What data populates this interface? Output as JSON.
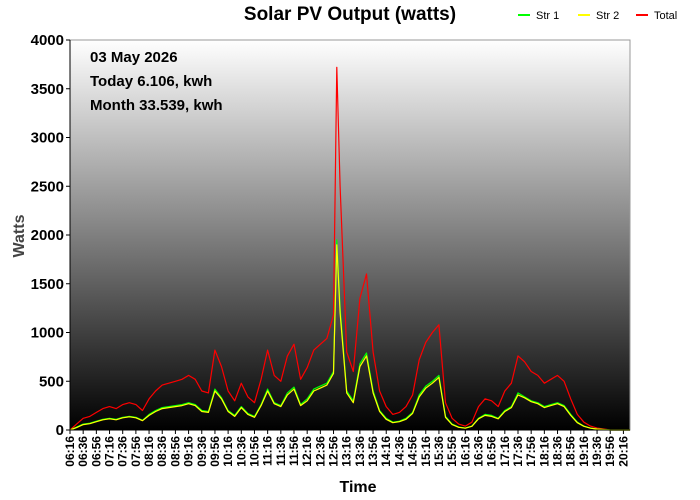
{
  "chart_data": {
    "type": "line",
    "title": "Solar PV Output (watts)",
    "xlabel": "Time",
    "ylabel": "Watts",
    "ylim": [
      0,
      4000
    ],
    "y_ticks": [
      0,
      500,
      1000,
      1500,
      2000,
      2500,
      3000,
      3500,
      4000
    ],
    "x_ticks": [
      "06:16",
      "06:36",
      "06:56",
      "07:16",
      "07:36",
      "07:56",
      "08:16",
      "08:36",
      "08:56",
      "09:16",
      "09:36",
      "09:56",
      "10:16",
      "10:36",
      "10:56",
      "11:16",
      "11:36",
      "11:56",
      "12:16",
      "12:36",
      "12:56",
      "13:16",
      "13:36",
      "13:56",
      "14:16",
      "14:36",
      "14:56",
      "15:16",
      "15:36",
      "15:56",
      "16:16",
      "16:36",
      "16:56",
      "17:16",
      "17:36",
      "17:56",
      "18:16",
      "18:36",
      "18:56",
      "19:16",
      "19:36",
      "19:56",
      "20:16"
    ],
    "legend_position": "top-right",
    "grid": false,
    "annotations": [
      "03 May 2026",
      "Today 6.106, kwh",
      "Month 33.539, kwh"
    ],
    "series": [
      {
        "name": "Str 1",
        "color": "#00ff00",
        "x": [
          "06:16",
          "06:26",
          "06:36",
          "06:46",
          "06:56",
          "07:06",
          "07:16",
          "07:26",
          "07:36",
          "07:46",
          "07:56",
          "08:06",
          "08:16",
          "08:26",
          "08:36",
          "08:46",
          "08:56",
          "09:06",
          "09:16",
          "09:26",
          "09:36",
          "09:46",
          "09:56",
          "10:06",
          "10:16",
          "10:26",
          "10:36",
          "10:46",
          "10:56",
          "11:06",
          "11:16",
          "11:26",
          "11:36",
          "11:46",
          "11:56",
          "12:06",
          "12:16",
          "12:26",
          "12:36",
          "12:46",
          "12:56",
          "13:01",
          "13:06",
          "13:16",
          "13:26",
          "13:36",
          "13:46",
          "13:56",
          "14:06",
          "14:16",
          "14:26",
          "14:36",
          "14:46",
          "14:56",
          "15:06",
          "15:16",
          "15:26",
          "15:36",
          "15:46",
          "15:56",
          "16:06",
          "16:16",
          "16:26",
          "16:36",
          "16:46",
          "16:56",
          "17:06",
          "17:16",
          "17:26",
          "17:36",
          "17:46",
          "17:56",
          "18:06",
          "18:16",
          "18:26",
          "18:36",
          "18:46",
          "18:56",
          "19:06",
          "19:16",
          "19:26",
          "19:36",
          "19:46",
          "19:56",
          "20:06",
          "20:16",
          "20:26"
        ],
        "values": [
          0,
          30,
          60,
          70,
          90,
          110,
          120,
          110,
          130,
          140,
          130,
          100,
          160,
          200,
          230,
          240,
          250,
          260,
          280,
          260,
          200,
          190,
          420,
          330,
          200,
          150,
          240,
          170,
          140,
          260,
          420,
          280,
          250,
          380,
          440,
          260,
          320,
          420,
          450,
          480,
          600,
          1950,
          1250,
          400,
          300,
          680,
          790,
          400,
          200,
          120,
          80,
          90,
          120,
          180,
          360,
          450,
          500,
          560,
          140,
          60,
          30,
          20,
          40,
          120,
          160,
          150,
          120,
          200,
          240,
          380,
          340,
          300,
          280,
          240,
          260,
          280,
          250,
          160,
          80,
          40,
          20,
          10,
          5,
          0,
          0,
          0,
          0
        ]
      },
      {
        "name": "Str 2",
        "color": "#ffff00",
        "x": [
          "06:16",
          "06:26",
          "06:36",
          "06:46",
          "06:56",
          "07:06",
          "07:16",
          "07:26",
          "07:36",
          "07:46",
          "07:56",
          "08:06",
          "08:16",
          "08:26",
          "08:36",
          "08:46",
          "08:56",
          "09:06",
          "09:16",
          "09:26",
          "09:36",
          "09:46",
          "09:56",
          "10:06",
          "10:16",
          "10:26",
          "10:36",
          "10:46",
          "10:56",
          "11:06",
          "11:16",
          "11:26",
          "11:36",
          "11:46",
          "11:56",
          "12:06",
          "12:16",
          "12:26",
          "12:36",
          "12:46",
          "12:56",
          "13:01",
          "13:06",
          "13:16",
          "13:26",
          "13:36",
          "13:46",
          "13:56",
          "14:06",
          "14:16",
          "14:26",
          "14:36",
          "14:46",
          "14:56",
          "15:06",
          "15:16",
          "15:26",
          "15:36",
          "15:46",
          "15:56",
          "16:06",
          "16:16",
          "16:26",
          "16:36",
          "16:46",
          "16:56",
          "17:06",
          "17:16",
          "17:26",
          "17:36",
          "17:46",
          "17:56",
          "18:06",
          "18:16",
          "18:26",
          "18:36",
          "18:46",
          "18:56",
          "19:06",
          "19:16",
          "19:26",
          "19:36",
          "19:46",
          "19:56",
          "20:06",
          "20:16",
          "20:26"
        ],
        "values": [
          0,
          25,
          55,
          65,
          85,
          105,
          115,
          105,
          125,
          135,
          125,
          95,
          150,
          190,
          220,
          230,
          240,
          250,
          270,
          250,
          190,
          180,
          400,
          320,
          190,
          140,
          230,
          160,
          130,
          250,
          400,
          270,
          240,
          360,
          420,
          250,
          300,
          400,
          430,
          460,
          580,
          1900,
          1200,
          380,
          280,
          650,
          760,
          380,
          190,
          110,
          75,
          85,
          110,
          170,
          340,
          430,
          480,
          540,
          130,
          55,
          28,
          18,
          38,
          115,
          150,
          140,
          115,
          190,
          230,
          360,
          330,
          290,
          270,
          230,
          250,
          270,
          240,
          150,
          75,
          38,
          18,
          9,
          4,
          0,
          0,
          0,
          0
        ]
      },
      {
        "name": "Total",
        "color": "#ff0000",
        "x": [
          "06:16",
          "06:26",
          "06:36",
          "06:46",
          "06:56",
          "07:06",
          "07:16",
          "07:26",
          "07:36",
          "07:46",
          "07:56",
          "08:06",
          "08:16",
          "08:26",
          "08:36",
          "08:46",
          "08:56",
          "09:06",
          "09:16",
          "09:26",
          "09:36",
          "09:46",
          "09:56",
          "10:06",
          "10:16",
          "10:26",
          "10:36",
          "10:46",
          "10:56",
          "11:06",
          "11:16",
          "11:26",
          "11:36",
          "11:46",
          "11:56",
          "12:06",
          "12:16",
          "12:26",
          "12:36",
          "12:46",
          "12:56",
          "13:01",
          "13:06",
          "13:16",
          "13:26",
          "13:36",
          "13:46",
          "13:56",
          "14:06",
          "14:16",
          "14:26",
          "14:36",
          "14:46",
          "14:56",
          "15:06",
          "15:16",
          "15:26",
          "15:36",
          "15:46",
          "15:56",
          "16:06",
          "16:16",
          "16:26",
          "16:36",
          "16:46",
          "16:56",
          "17:06",
          "17:16",
          "17:26",
          "17:36",
          "17:46",
          "17:56",
          "18:06",
          "18:16",
          "18:26",
          "18:36",
          "18:46",
          "18:56",
          "19:06",
          "19:16",
          "19:26",
          "19:36",
          "19:46",
          "19:56",
          "20:06",
          "20:16",
          "20:26"
        ],
        "values": [
          0,
          60,
          120,
          140,
          180,
          220,
          240,
          220,
          260,
          280,
          260,
          200,
          320,
          400,
          460,
          480,
          500,
          520,
          560,
          520,
          400,
          380,
          820,
          650,
          400,
          300,
          480,
          340,
          280,
          520,
          820,
          560,
          500,
          760,
          880,
          520,
          640,
          820,
          880,
          940,
          1180,
          3720,
          2500,
          800,
          600,
          1350,
          1600,
          800,
          400,
          240,
          160,
          180,
          240,
          360,
          720,
          900,
          1000,
          1080,
          280,
          120,
          60,
          40,
          80,
          240,
          320,
          300,
          240,
          400,
          480,
          760,
          700,
          600,
          560,
          480,
          520,
          560,
          500,
          320,
          160,
          80,
          40,
          20,
          10,
          0,
          0,
          0,
          0
        ]
      }
    ]
  }
}
